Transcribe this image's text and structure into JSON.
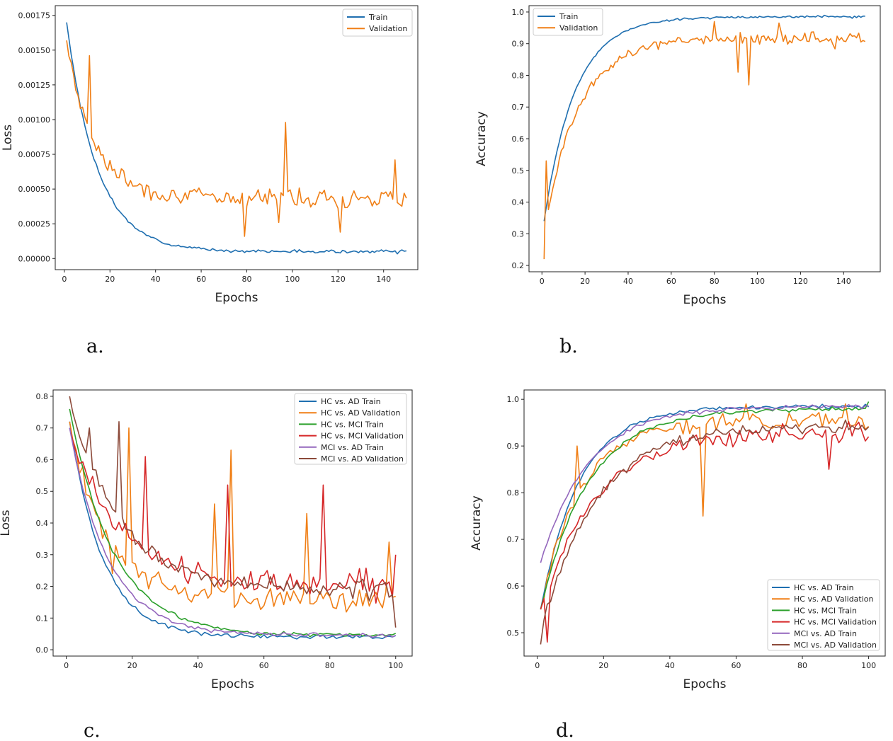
{
  "chart_data": [
    {
      "id": "a",
      "panel_label": "a.",
      "type": "line",
      "title": "",
      "xlabel": "Epochs",
      "ylabel": "Loss",
      "xlim": [
        -4,
        155
      ],
      "ylim": [
        -8e-05,
        0.00182
      ],
      "xticks": [
        0,
        20,
        40,
        60,
        80,
        100,
        120,
        140
      ],
      "xtick_labels": [
        "0",
        "20",
        "40",
        "60",
        "80",
        "100",
        "120",
        "140"
      ],
      "yticks": [
        0,
        0.00025,
        0.0005,
        0.00075,
        0.001,
        0.00125,
        0.0015,
        0.00175
      ],
      "ytick_labels": [
        "0.00000",
        "0.00025",
        "0.00050",
        "0.00075",
        "0.00100",
        "0.00125",
        "0.00150",
        "0.00175"
      ],
      "legend_position": "top-right",
      "series": [
        {
          "name": "Train",
          "color": "#1f6fb0",
          "x_start": 1,
          "x_end": 150,
          "shape": "exp",
          "start": 0.0017,
          "end": 5e-05,
          "rate": 0.075,
          "noise": 2e-05,
          "seed": 3
        },
        {
          "name": "Validation",
          "color": "#f07f16",
          "x_start": 1,
          "x_end": 150,
          "shape": "exp",
          "start": 0.00157,
          "end": 0.00044,
          "rate": 0.085,
          "noise": 0.00013,
          "seed": 7,
          "spikes": [
            [
              11,
              0.00146
            ],
            [
              97,
              0.00098
            ],
            [
              79,
              0.00016
            ],
            [
              145,
              0.00071
            ],
            [
              121,
              0.00019
            ],
            [
              94,
              0.00026
            ]
          ]
        }
      ]
    },
    {
      "id": "b",
      "panel_label": "b.",
      "type": "line",
      "title": "",
      "xlabel": "Epochs",
      "ylabel": "Accuracy",
      "xlim": [
        -6,
        157
      ],
      "ylim": [
        0.18,
        1.02
      ],
      "xticks": [
        0,
        20,
        40,
        60,
        80,
        100,
        120,
        140
      ],
      "xtick_labels": [
        "0",
        "20",
        "40",
        "60",
        "80",
        "100",
        "120",
        "140"
      ],
      "yticks": [
        0.2,
        0.3,
        0.4,
        0.5,
        0.6,
        0.7,
        0.8,
        0.9,
        1.0
      ],
      "ytick_labels": [
        "0.2",
        "0.3",
        "0.4",
        "0.5",
        "0.6",
        "0.7",
        "0.8",
        "0.9",
        "1.0"
      ],
      "legend_position": "top-left",
      "series": [
        {
          "name": "Train",
          "color": "#1f6fb0",
          "x_start": 1,
          "x_end": 150,
          "shape": "exp",
          "start": 0.34,
          "end": 0.985,
          "rate": 0.07,
          "noise": 0.006,
          "seed": 11
        },
        {
          "name": "Validation",
          "color": "#f07f16",
          "x_start": 1,
          "x_end": 150,
          "shape": "exp",
          "start": 0.3,
          "end": 0.915,
          "rate": 0.065,
          "noise": 0.035,
          "seed": 5,
          "spikes": [
            [
              1,
              0.22
            ],
            [
              2,
              0.53
            ],
            [
              96,
              0.77
            ],
            [
              110,
              0.965
            ],
            [
              80,
              0.97
            ],
            [
              91,
              0.81
            ]
          ]
        }
      ]
    },
    {
      "id": "c",
      "panel_label": "c.",
      "type": "line",
      "title": "",
      "xlabel": "Epochs",
      "ylabel": "Loss",
      "xlim": [
        -4,
        105
      ],
      "ylim": [
        -0.02,
        0.82
      ],
      "xticks": [
        0,
        20,
        40,
        60,
        80,
        100
      ],
      "xtick_labels": [
        "0",
        "20",
        "40",
        "60",
        "80",
        "100"
      ],
      "yticks": [
        0,
        0.1,
        0.2,
        0.3,
        0.4,
        0.5,
        0.6,
        0.7,
        0.8
      ],
      "ytick_labels": [
        "0.0",
        "0.1",
        "0.2",
        "0.3",
        "0.4",
        "0.5",
        "0.6",
        "0.7",
        "0.8"
      ],
      "legend_position": "top-right",
      "series": [
        {
          "name": "HC vs. AD Train",
          "color": "#1f6fb0",
          "x_start": 1,
          "x_end": 100,
          "shape": "exp",
          "start": 0.72,
          "end": 0.04,
          "rate": 0.1,
          "noise": 0.012,
          "seed": 21
        },
        {
          "name": "HC vs. AD Validation",
          "color": "#f07f16",
          "x_start": 1,
          "x_end": 100,
          "shape": "exp",
          "start": 0.72,
          "end": 0.16,
          "rate": 0.09,
          "noise": 0.07,
          "seed": 22,
          "spikes": [
            [
              19,
              0.7
            ],
            [
              50,
              0.63
            ],
            [
              45,
              0.46
            ],
            [
              73,
              0.43
            ],
            [
              98,
              0.34
            ],
            [
              14,
              0.24
            ]
          ]
        },
        {
          "name": "HC vs. MCI Train",
          "color": "#2ca02c",
          "x_start": 1,
          "x_end": 100,
          "shape": "exp",
          "start": 0.76,
          "end": 0.045,
          "rate": 0.075,
          "noise": 0.012,
          "seed": 23
        },
        {
          "name": "HC vs. MCI Validation",
          "color": "#d62728",
          "x_start": 1,
          "x_end": 100,
          "shape": "exp",
          "start": 0.7,
          "end": 0.2,
          "rate": 0.065,
          "noise": 0.075,
          "seed": 24,
          "spikes": [
            [
              24,
              0.61
            ],
            [
              49,
              0.52
            ],
            [
              78,
              0.52
            ],
            [
              100,
              0.3
            ]
          ]
        },
        {
          "name": "MCI vs. AD Train",
          "color": "#9467bd",
          "x_start": 1,
          "x_end": 100,
          "shape": "exp",
          "start": 0.7,
          "end": 0.045,
          "rate": 0.085,
          "noise": 0.012,
          "seed": 25
        },
        {
          "name": "MCI vs. AD Validation",
          "color": "#8c4a3a",
          "x_start": 1,
          "x_end": 100,
          "shape": "exp",
          "start": 0.79,
          "end": 0.19,
          "rate": 0.065,
          "noise": 0.05,
          "seed": 26,
          "spikes": [
            [
              1,
              0.8
            ],
            [
              16,
              0.72
            ],
            [
              7,
              0.7
            ],
            [
              100,
              0.07
            ]
          ]
        }
      ]
    },
    {
      "id": "d",
      "panel_label": "d.",
      "type": "line",
      "title": "",
      "xlabel": "Epochs",
      "ylabel": "Accuracy",
      "xlim": [
        -4,
        105
      ],
      "ylim": [
        0.45,
        1.02
      ],
      "xticks": [
        0,
        20,
        40,
        60,
        80,
        100
      ],
      "xtick_labels": [
        "0",
        "20",
        "40",
        "60",
        "80",
        "100"
      ],
      "yticks": [
        0.5,
        0.6,
        0.7,
        0.8,
        0.9,
        1.0
      ],
      "ytick_labels": [
        "0.5",
        "0.6",
        "0.7",
        "0.8",
        "0.9",
        "1.0"
      ],
      "legend_position": "bottom-right",
      "series": [
        {
          "name": "HC vs. AD Train",
          "color": "#1f6fb0",
          "x_start": 1,
          "x_end": 100,
          "shape": "exp",
          "start": 0.55,
          "end": 0.985,
          "rate": 0.085,
          "noise": 0.007,
          "seed": 31
        },
        {
          "name": "HC vs. AD Validation",
          "color": "#f07f16",
          "x_start": 1,
          "x_end": 100,
          "shape": "exp",
          "start": 0.55,
          "end": 0.955,
          "rate": 0.085,
          "noise": 0.03,
          "seed": 32,
          "spikes": [
            [
              50,
              0.75
            ],
            [
              12,
              0.9
            ],
            [
              93,
              0.99
            ],
            [
              63,
              0.99
            ]
          ]
        },
        {
          "name": "HC vs. MCI Train",
          "color": "#2ca02c",
          "x_start": 1,
          "x_end": 100,
          "shape": "exp",
          "start": 0.55,
          "end": 0.98,
          "rate": 0.07,
          "noise": 0.008,
          "seed": 33,
          "spikes": [
            [
              100,
              0.995
            ]
          ]
        },
        {
          "name": "HC vs. MCI Validation",
          "color": "#d62728",
          "x_start": 1,
          "x_end": 100,
          "shape": "exp",
          "start": 0.55,
          "end": 0.93,
          "rate": 0.06,
          "noise": 0.035,
          "seed": 34,
          "spikes": [
            [
              3,
              0.48
            ],
            [
              100,
              0.92
            ],
            [
              88,
              0.85
            ]
          ]
        },
        {
          "name": "MCI vs. AD Train",
          "color": "#9467bd",
          "x_start": 1,
          "x_end": 100,
          "shape": "exp",
          "start": 0.65,
          "end": 0.985,
          "rate": 0.07,
          "noise": 0.008,
          "seed": 35
        },
        {
          "name": "MCI vs. AD Validation",
          "color": "#8c4a3a",
          "x_start": 1,
          "x_end": 100,
          "shape": "exp",
          "start": 0.5,
          "end": 0.945,
          "rate": 0.06,
          "noise": 0.025,
          "seed": 36,
          "spikes": [
            [
              1,
              0.475
            ]
          ]
        }
      ]
    }
  ]
}
